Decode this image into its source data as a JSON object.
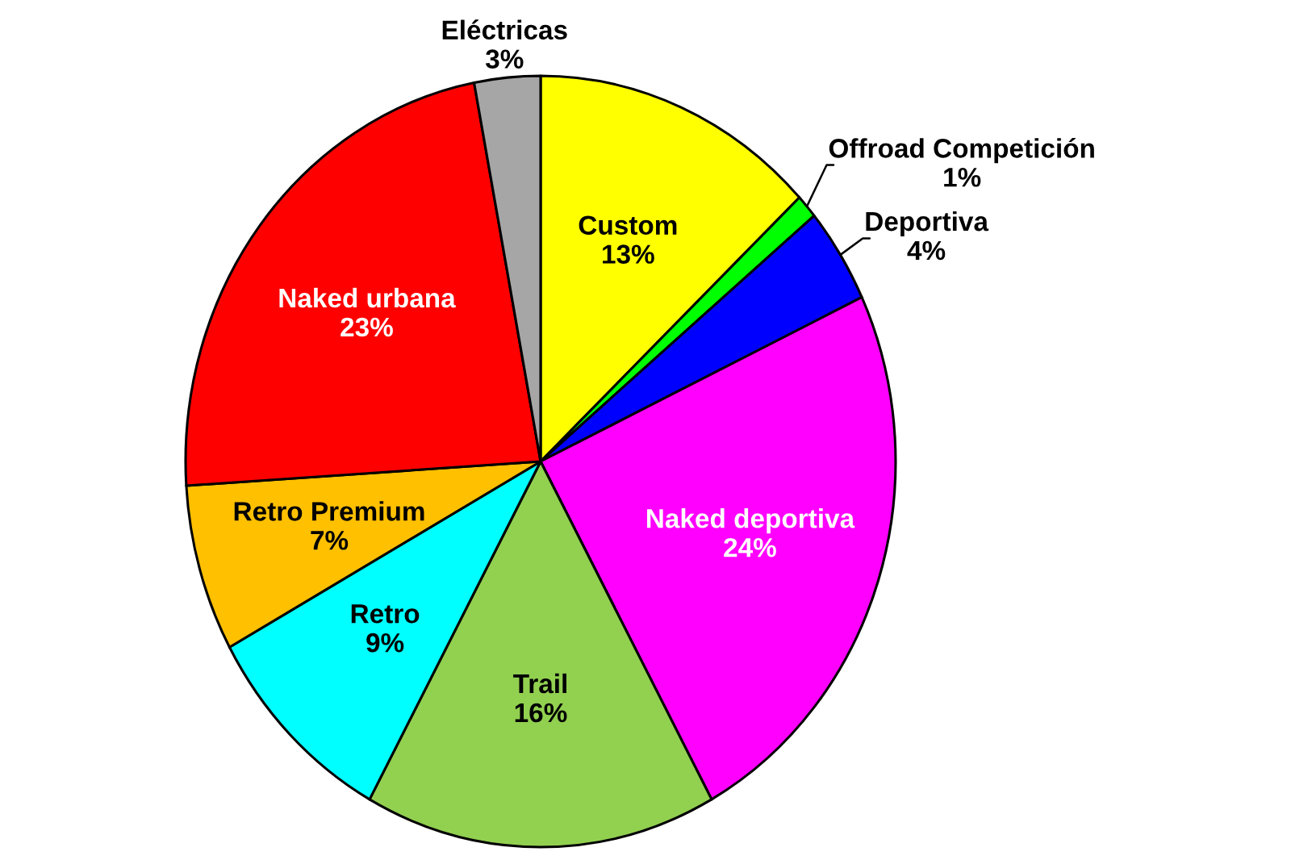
{
  "chart_data": {
    "type": "pie",
    "categories": [
      "Custom",
      "Offroad Competición",
      "Deportiva",
      "Naked deportiva",
      "Trail",
      "Retro",
      "Retro Premium",
      "Naked urbana",
      "Eléctricas"
    ],
    "values": [
      13,
      1,
      4,
      24,
      16,
      9,
      7,
      23,
      3
    ],
    "value_labels": [
      "13%",
      "1%",
      "4%",
      "24%",
      "16%",
      "9%",
      "7%",
      "23%",
      "3%"
    ],
    "colors": [
      "#ffff00",
      "#00ff00",
      "#0000ff",
      "#ff00ff",
      "#92d050",
      "#00ffff",
      "#ffc000",
      "#ff0000",
      "#a6a6a6"
    ]
  }
}
